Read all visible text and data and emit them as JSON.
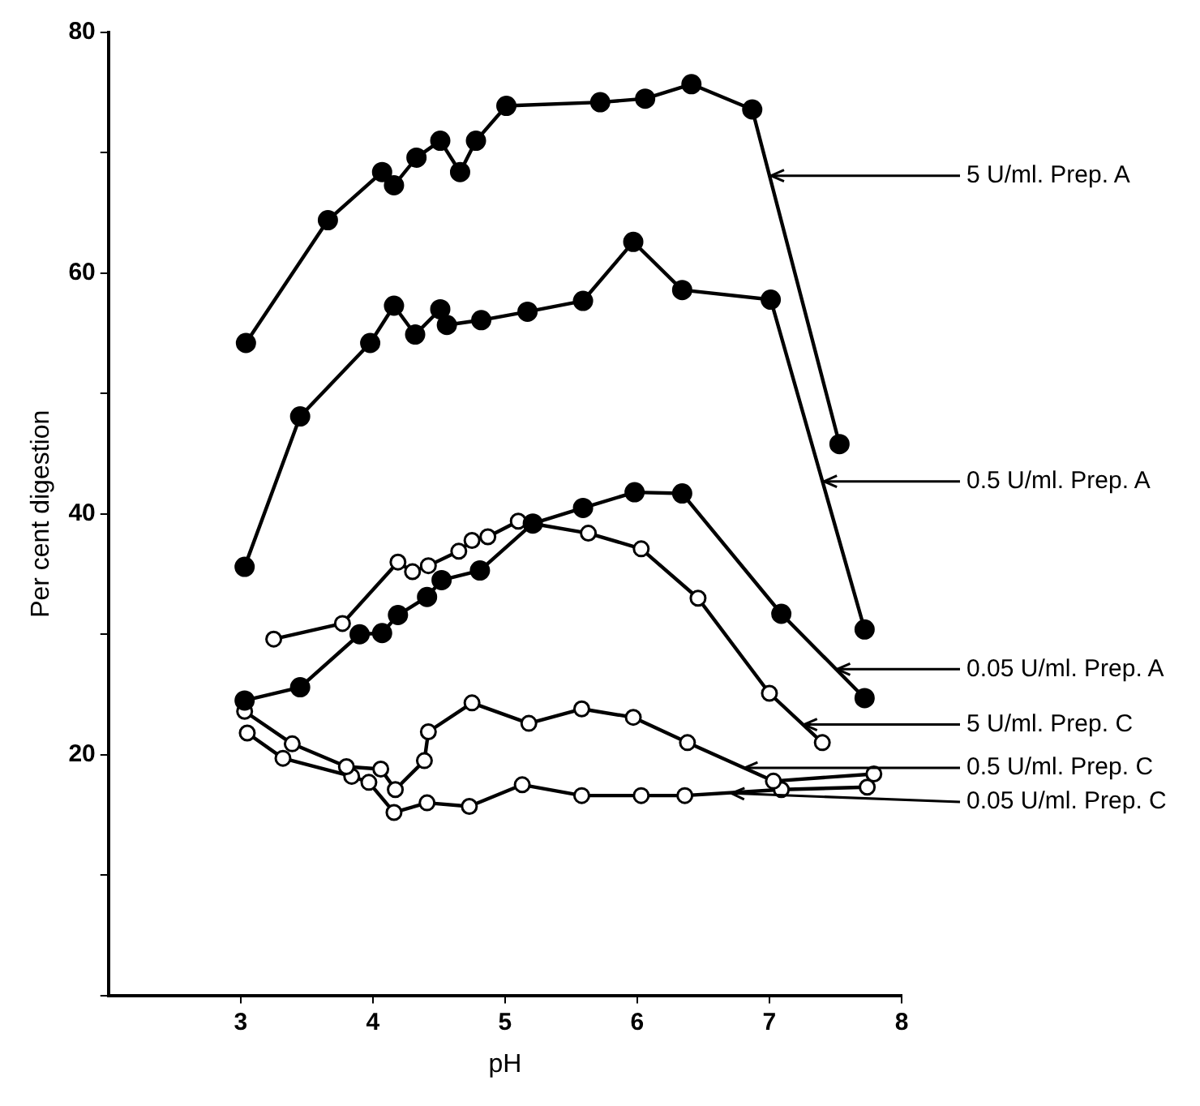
{
  "chart_data": {
    "type": "line",
    "xlabel": "pH",
    "ylabel": "Per cent digestion",
    "xlim": [
      2,
      8
    ],
    "xticks": [
      3,
      4,
      5,
      6,
      7,
      8
    ],
    "ylim": [
      0,
      80
    ],
    "yticks": [
      {
        "value": 0,
        "label": null
      },
      {
        "value": 10,
        "label": null
      },
      20,
      {
        "value": 30,
        "label": null
      },
      40,
      {
        "value": 50,
        "label": null
      },
      60,
      {
        "value": 70,
        "label": null
      },
      80
    ],
    "grid": false,
    "legend": false,
    "marker": "circle",
    "line_style": "solid",
    "series": [
      {
        "color": "#000000",
        "x": [
          3.04,
          3.66,
          4.07,
          4.16,
          4.33,
          4.51,
          4.66,
          4.78,
          5.01,
          5.72,
          6.06,
          6.41,
          6.87,
          7.53
        ],
        "values": [
          54.2,
          64.4,
          68.4,
          67.3,
          69.6,
          71.0,
          68.4,
          71.0,
          73.9,
          74.2,
          74.5,
          75.7,
          73.6,
          45.8
        ]
      },
      {
        "color": "#000000",
        "x": [
          3.03,
          3.45,
          3.98,
          4.16,
          4.32,
          4.51,
          4.56,
          4.82,
          5.17,
          5.59,
          5.97,
          6.34,
          7.01,
          7.72
        ],
        "values": [
          35.6,
          48.1,
          54.2,
          57.3,
          54.9,
          57.0,
          55.7,
          56.1,
          56.8,
          57.7,
          62.6,
          58.6,
          57.8,
          30.4
        ]
      },
      {
        "color": "#000000",
        "x": [
          3.03,
          3.45,
          3.9,
          4.07,
          4.19,
          4.41,
          4.52,
          4.81,
          5.21,
          5.59,
          5.98,
          6.34,
          7.09,
          7.72
        ],
        "values": [
          24.5,
          25.6,
          30.0,
          30.1,
          31.6,
          33.1,
          34.5,
          35.3,
          39.2,
          40.5,
          41.8,
          41.7,
          31.7,
          24.7
        ]
      },
      {
        "color": "#000000",
        "marker": "circle-open",
        "x": [
          3.25,
          3.77,
          4.19,
          4.3,
          4.42,
          4.65,
          4.75,
          4.87,
          5.1,
          5.63,
          6.03,
          6.46,
          7.0,
          7.4
        ],
        "values": [
          29.6,
          30.9,
          36.0,
          35.2,
          35.7,
          36.9,
          37.8,
          38.1,
          39.4,
          38.4,
          37.1,
          33.0,
          25.1,
          21.0
        ]
      },
      {
        "color": "#000000",
        "marker": "circle-open",
        "x": [
          3.03,
          3.39,
          3.8,
          4.06,
          4.17,
          4.39,
          4.42,
          4.75,
          5.18,
          5.58,
          5.97,
          6.38,
          7.03,
          7.79
        ],
        "values": [
          23.6,
          20.9,
          19.0,
          18.8,
          17.1,
          19.5,
          21.9,
          24.3,
          22.6,
          23.8,
          23.1,
          21.0,
          17.8,
          18.4
        ]
      },
      {
        "color": "#000000",
        "marker": "circle-open",
        "x": [
          3.05,
          3.32,
          3.84,
          3.97,
          4.16,
          4.41,
          4.73,
          5.13,
          5.58,
          6.03,
          6.36,
          7.09,
          7.74
        ],
        "values": [
          21.8,
          19.7,
          18.2,
          17.7,
          15.2,
          16.0,
          15.7,
          17.5,
          16.6,
          16.6,
          16.6,
          17.1,
          17.3
        ]
      }
    ],
    "annotations": [
      {
        "text": "5 U/ml. Prep. A",
        "x": 7.0,
        "y": 68.1
      },
      {
        "text": "0.5 U/ml. Prep. A",
        "x": 7.4,
        "y": 42.7
      },
      {
        "text": "0.05 U/ml. Prep. A",
        "x": 7.5,
        "y": 27.1
      },
      {
        "text": "5 U/ml. Prep. C",
        "x": 7.25,
        "y": 22.5
      },
      {
        "text": "0.5 U/ml. Prep. C",
        "x": 6.8,
        "y": 18.9
      },
      {
        "text": "0.05 U/ml. Prep. C",
        "x": 6.7,
        "y": 16.8
      }
    ]
  }
}
